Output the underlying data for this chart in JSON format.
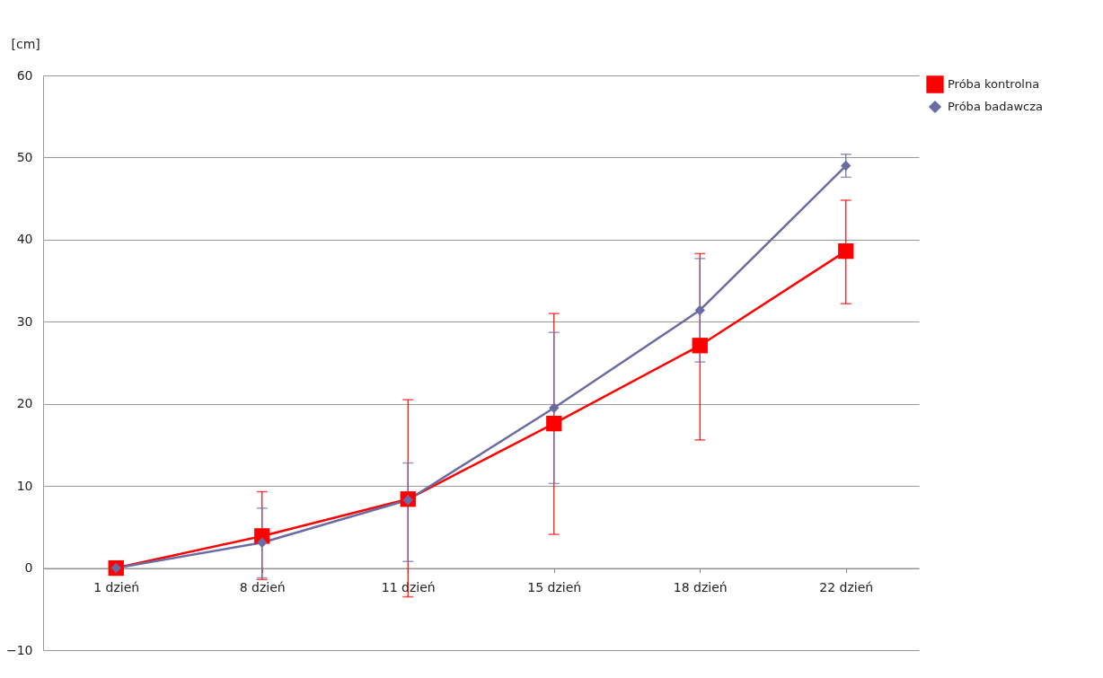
{
  "chart_data": {
    "type": "line",
    "ylabel": "[cm]",
    "categories": [
      "1 dzień",
      "8 dzień",
      "11 dzień",
      "15 dzień",
      "18 dzień",
      "22 dzień"
    ],
    "series": [
      {
        "name": "Próba kontrolna",
        "color": "#ff0000",
        "marker": "square",
        "values": [
          0,
          3.9,
          8.4,
          17.6,
          27.1,
          38.6
        ],
        "errors": [
          null,
          [
            -1.4,
            9.3
          ],
          [
            -3.5,
            20.5
          ],
          [
            4.1,
            31.0
          ],
          [
            15.6,
            38.3
          ],
          [
            32.2,
            44.8
          ]
        ]
      },
      {
        "name": "Próba badawcza",
        "color": "#6b6ba3",
        "marker": "diamond",
        "values": [
          0,
          3.1,
          8.3,
          19.5,
          31.4,
          49.0
        ],
        "errors": [
          null,
          [
            -1.2,
            7.3
          ],
          [
            0.8,
            12.8
          ],
          [
            10.3,
            28.7
          ],
          [
            25.1,
            37.7
          ],
          [
            47.6,
            50.4
          ]
        ]
      }
    ],
    "ylim": [
      -10,
      60
    ],
    "yticks": [
      -10,
      0,
      10,
      20,
      30,
      40,
      50,
      60
    ],
    "grid": "y",
    "legend": "right",
    "line_style": "solid"
  }
}
